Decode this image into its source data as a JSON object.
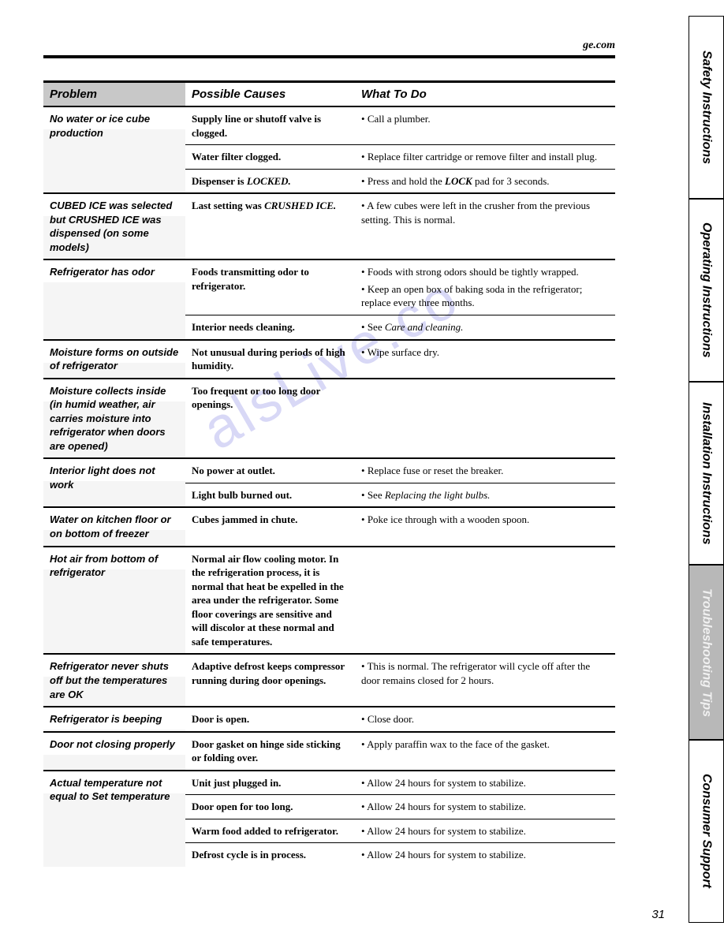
{
  "header": {
    "site": "ge.com"
  },
  "page_number": "31",
  "watermark": "alsLive.co",
  "columns": {
    "problem": "Problem",
    "causes": "Possible Causes",
    "action": "What To Do"
  },
  "tabs": [
    {
      "label": "Safety Instructions",
      "active": false,
      "flex": 1.0
    },
    {
      "label": "Operating Instructions",
      "active": false,
      "flex": 1.0
    },
    {
      "label": "Installation Instructions",
      "active": false,
      "flex": 1.0
    },
    {
      "label": "Troubleshooting Tips",
      "active": true,
      "flex": 0.95
    },
    {
      "label": "Consumer Support",
      "active": false,
      "flex": 1.0
    }
  ],
  "sections": [
    {
      "problem": "No water or ice cube production",
      "rows": [
        {
          "cause": "Supply line or shutoff valve is clogged.",
          "actions": [
            "Call a plumber."
          ]
        },
        {
          "cause": "Water filter clogged.",
          "actions": [
            "Replace filter cartridge or remove filter and install plug."
          ]
        },
        {
          "cause_html": "Dispenser is <b><i>LOCKED.</i></b>",
          "actions_html": [
            "Press and hold the <b><i>LOCK</i></b> pad for 3 seconds."
          ]
        }
      ]
    },
    {
      "problem": "CUBED ICE was selected but CRUSHED ICE was dispensed (on some models)",
      "rows": [
        {
          "cause_html": "Last setting was <b><i>CRUSHED ICE.</i></b>",
          "actions": [
            "A few cubes were left in the crusher from the previous setting. This is normal."
          ]
        }
      ]
    },
    {
      "problem": "Refrigerator has odor",
      "rows": [
        {
          "cause": "Foods transmitting odor to refrigerator.",
          "actions": [
            "Foods with strong odors should be tightly wrapped.",
            "Keep an open box of baking soda in the refrigerator; replace every three months."
          ]
        },
        {
          "cause": "Interior needs cleaning.",
          "actions_html": [
            "See <i>Care and cleaning.</i>"
          ]
        }
      ]
    },
    {
      "problem": "Moisture forms on outside of refrigerator",
      "rows": [
        {
          "cause": "Not unusual during periods of high humidity.",
          "actions": [
            "Wipe surface dry."
          ]
        }
      ]
    },
    {
      "problem": "Moisture collects inside (in humid weather, air carries moisture into refrigerator when doors are opened)",
      "rows": [
        {
          "cause": "Too frequent or too long door openings.",
          "actions": []
        }
      ]
    },
    {
      "problem": "Interior light does not work",
      "rows": [
        {
          "cause": "No power at outlet.",
          "actions": [
            "Replace fuse or reset the breaker."
          ]
        },
        {
          "cause": "Light bulb burned out.",
          "actions_html": [
            "See <i>Replacing the light bulbs.</i>"
          ]
        }
      ]
    },
    {
      "problem": "Water on kitchen floor or on bottom of freezer",
      "rows": [
        {
          "cause": "Cubes jammed in chute.",
          "actions": [
            "Poke ice through with a wooden spoon."
          ]
        }
      ]
    },
    {
      "problem": "Hot air from bottom of refrigerator",
      "rows": [
        {
          "cause": "Normal air flow cooling motor. In the refrigeration process, it is normal that heat be expelled in the area under the refrigerator. Some floor coverings are sensitive and will discolor at these normal and safe temperatures.",
          "actions": []
        }
      ]
    },
    {
      "problem": "Refrigerator never shuts off but the temperatures are OK",
      "rows": [
        {
          "cause": "Adaptive defrost keeps compressor running during door openings.",
          "actions": [
            "This is normal. The refrigerator will cycle off after the door remains closed for 2 hours."
          ]
        }
      ]
    },
    {
      "problem": "Refrigerator is beeping",
      "rows": [
        {
          "cause": "Door is open.",
          "actions": [
            "Close door."
          ]
        }
      ]
    },
    {
      "problem": "Door not closing properly",
      "rows": [
        {
          "cause": "Door gasket on hinge side sticking or folding over.",
          "actions": [
            "Apply paraffin wax to the face of the gasket."
          ]
        }
      ]
    },
    {
      "problem": "Actual temperature not equal to Set temperature",
      "rows": [
        {
          "cause": "Unit just plugged in.",
          "actions": [
            "Allow 24 hours for system to stabilize."
          ]
        },
        {
          "cause": "Door open for too long.",
          "actions": [
            "Allow 24 hours for system to stabilize."
          ]
        },
        {
          "cause": "Warm food added to refrigerator.",
          "actions": [
            "Allow 24 hours for system to stabilize."
          ]
        },
        {
          "cause": "Defrost cycle is in process.",
          "actions": [
            "Allow 24 hours for system to stabilize."
          ]
        }
      ]
    }
  ]
}
